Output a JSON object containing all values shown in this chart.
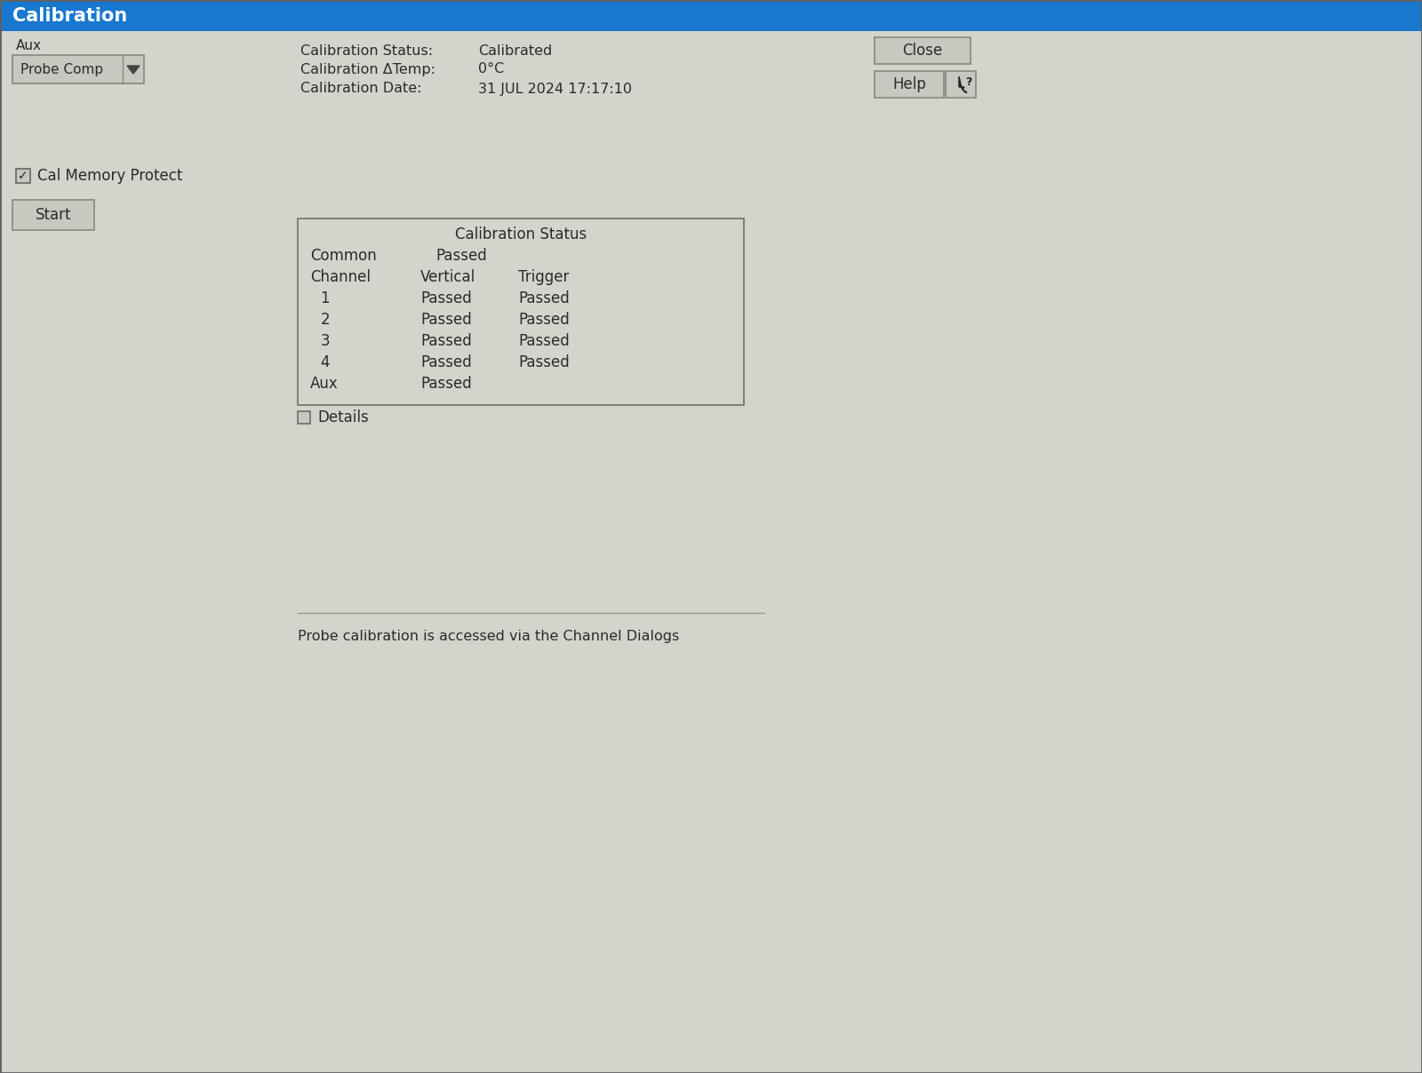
{
  "title": "Calibration",
  "title_bar_color": "#1878d0",
  "title_text_color": "#ffffff",
  "bg_color": "#d4d4cc",
  "figsize": [
    16.0,
    12.08
  ],
  "dpi": 100,
  "aux_label": "Aux",
  "dropdown_label": "Probe Comp",
  "cal_status_label": "Calibration Status:",
  "cal_status_value": "Calibrated",
  "cal_delta_label": "Calibration ΔTemp:",
  "cal_delta_value": "0°C",
  "cal_date_label": "Calibration Date:",
  "cal_date_value": "31 JUL 2024 17:17:10",
  "close_btn": "Close",
  "help_btn": "Help",
  "checkbox_label": "Cal Memory Protect",
  "start_btn": "Start",
  "table_title": "Calibration Status",
  "table_common": "Common",
  "table_common_val": "Passed",
  "table_headers": [
    "Channel",
    "Vertical",
    "Trigger"
  ],
  "table_rows": [
    [
      "1",
      "Passed",
      "Passed"
    ],
    [
      "2",
      "Passed",
      "Passed"
    ],
    [
      "3",
      "Passed",
      "Passed"
    ],
    [
      "4",
      "Passed",
      "Passed"
    ]
  ],
  "table_aux": [
    "Aux",
    "Passed"
  ],
  "details_label": "Details",
  "footer_text": "Probe calibration is accessed via the Channel Dialogs",
  "border_color": "#888880",
  "text_color": "#2a2a2a",
  "button_border": "#888880",
  "button_bg": "#c8c8c0"
}
